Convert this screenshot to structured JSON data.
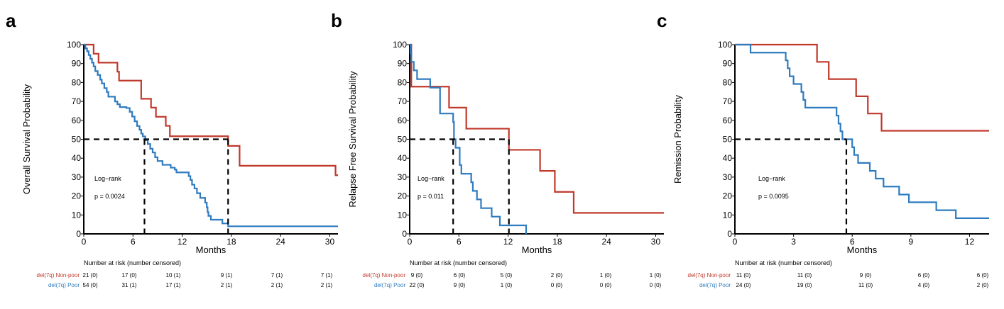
{
  "colors": {
    "non_poor": "#C0392B",
    "poor": "#2E7BBF",
    "median": "#000000"
  },
  "chart_data": [
    {
      "type": "line",
      "panel_label": "a",
      "ylabel": "Overall Survival Probability",
      "xlabel": "Months",
      "xlim": [
        0,
        31
      ],
      "ylim": [
        0,
        100
      ],
      "xticks": [
        0,
        6,
        12,
        18,
        24,
        30
      ],
      "yticks": [
        0,
        10,
        20,
        30,
        40,
        50,
        60,
        70,
        80,
        90,
        100
      ],
      "annotation": {
        "test": "Log−rank",
        "p": "p = 0.0024"
      },
      "median_lines": [
        7.4,
        17.6
      ],
      "series": [
        {
          "name": "del(7q) Non-poor",
          "key": "non_poor",
          "steps": [
            [
              0,
              100
            ],
            [
              1.2,
              95.2
            ],
            [
              1.8,
              90.5
            ],
            [
              4.1,
              85.7
            ],
            [
              4.3,
              81.0
            ],
            [
              7.0,
              71.4
            ],
            [
              8.2,
              66.7
            ],
            [
              8.8,
              61.9
            ],
            [
              10.0,
              57.1
            ],
            [
              10.5,
              51.6
            ],
            [
              17.6,
              46.5
            ],
            [
              19.0,
              36.0
            ],
            [
              30.7,
              31.0
            ],
            [
              31,
              31.0
            ]
          ]
        },
        {
          "name": "del(7q) Poor",
          "key": "poor",
          "steps": [
            [
              0,
              100
            ],
            [
              0.2,
              98
            ],
            [
              0.4,
              96.5
            ],
            [
              0.6,
              94.5
            ],
            [
              0.8,
              92.5
            ],
            [
              1.0,
              90.5
            ],
            [
              1.2,
              88.5
            ],
            [
              1.4,
              86
            ],
            [
              1.7,
              84
            ],
            [
              2.0,
              81.5
            ],
            [
              2.2,
              79.5
            ],
            [
              2.5,
              77
            ],
            [
              2.8,
              75
            ],
            [
              3.0,
              72.5
            ],
            [
              3.8,
              70
            ],
            [
              4.1,
              68.5
            ],
            [
              4.4,
              67
            ],
            [
              5.2,
              66.5
            ],
            [
              5.6,
              64.5
            ],
            [
              5.9,
              62
            ],
            [
              6.2,
              59.5
            ],
            [
              6.5,
              57
            ],
            [
              6.8,
              55
            ],
            [
              7.0,
              53
            ],
            [
              7.2,
              51.5
            ],
            [
              7.5,
              49.5
            ],
            [
              7.8,
              47.5
            ],
            [
              8.1,
              45
            ],
            [
              8.4,
              43
            ],
            [
              8.7,
              40.5
            ],
            [
              9.0,
              38.5
            ],
            [
              9.6,
              36.5
            ],
            [
              10.6,
              35
            ],
            [
              11.1,
              34
            ],
            [
              11.3,
              32.5
            ],
            [
              12.8,
              30.5
            ],
            [
              13.0,
              28.5
            ],
            [
              13.2,
              26
            ],
            [
              13.5,
              24
            ],
            [
              13.8,
              21.5
            ],
            [
              14.2,
              19
            ],
            [
              14.8,
              16.5
            ],
            [
              15.0,
              14
            ],
            [
              15.1,
              11.5
            ],
            [
              15.2,
              9.5
            ],
            [
              15.5,
              7.5
            ],
            [
              16.9,
              5.5
            ],
            [
              17.6,
              4.0
            ],
            [
              31,
              4.0
            ]
          ]
        }
      ],
      "risk_table": {
        "title": "Number at risk (number censored)",
        "rows": [
          {
            "label": "del(7q) Non-poor",
            "key": "non_poor",
            "values": [
              "21 (0)",
              "17 (0)",
              "10 (1)",
              "9 (1)",
              "7 (1)",
              "7 (1)"
            ]
          },
          {
            "label": "del(7q) Poor",
            "key": "poor",
            "values": [
              "54 (0)",
              "31 (1)",
              "17 (1)",
              "2 (1)",
              "2 (1)",
              "2 (1)"
            ]
          }
        ]
      }
    },
    {
      "type": "line",
      "panel_label": "b",
      "ylabel": "Relapse Free Survival Probability",
      "xlabel": "Months",
      "xlim": [
        0,
        31
      ],
      "ylim": [
        0,
        100
      ],
      "xticks": [
        0,
        6,
        12,
        18,
        24,
        30
      ],
      "yticks": [
        0,
        10,
        20,
        30,
        40,
        50,
        60,
        70,
        80,
        90,
        100
      ],
      "annotation": {
        "test": "Log−rank",
        "p": "p = 0.011"
      },
      "median_lines": [
        5.3,
        12.1
      ],
      "series": [
        {
          "name": "del(7q) Non-poor",
          "key": "non_poor",
          "steps": [
            [
              0,
              100
            ],
            [
              0.2,
              77.8
            ],
            [
              4.8,
              66.7
            ],
            [
              6.9,
              55.6
            ],
            [
              12.1,
              44.4
            ],
            [
              15.9,
              33.3
            ],
            [
              17.7,
              22.2
            ],
            [
              20.0,
              11.1
            ],
            [
              31,
              11.1
            ]
          ]
        },
        {
          "name": "del(7q) Poor",
          "key": "poor",
          "steps": [
            [
              0,
              100
            ],
            [
              0.1,
              95.5
            ],
            [
              0.2,
              90.9
            ],
            [
              0.5,
              86.4
            ],
            [
              0.9,
              81.8
            ],
            [
              2.5,
              77.3
            ],
            [
              3.7,
              63.6
            ],
            [
              5.3,
              59.1
            ],
            [
              5.4,
              50.0
            ],
            [
              5.6,
              45.5
            ],
            [
              6.1,
              36.4
            ],
            [
              6.3,
              31.8
            ],
            [
              7.5,
              27.3
            ],
            [
              7.7,
              22.7
            ],
            [
              8.2,
              18.2
            ],
            [
              8.7,
              13.6
            ],
            [
              10.0,
              9.1
            ],
            [
              11.0,
              4.5
            ],
            [
              14.2,
              0
            ]
          ]
        }
      ],
      "risk_table": {
        "title": "Number at risk (number censored)",
        "rows": [
          {
            "label": "del(7q) Non-poor",
            "key": "non_poor",
            "values": [
              "9 (0)",
              "6 (0)",
              "5 (0)",
              "2 (0)",
              "1 (0)",
              "1 (0)"
            ]
          },
          {
            "label": "del(7q) Poor",
            "key": "poor",
            "values": [
              "22 (0)",
              "9 (0)",
              "1 (0)",
              "0 (0)",
              "0 (0)",
              "0 (0)"
            ]
          }
        ]
      }
    },
    {
      "type": "line",
      "panel_label": "c",
      "ylabel": "Remission Probability",
      "xlabel": "Months",
      "xlim": [
        0,
        13
      ],
      "ylim": [
        0,
        100
      ],
      "xticks": [
        0,
        3,
        6,
        9,
        12
      ],
      "yticks": [
        0,
        10,
        20,
        30,
        40,
        50,
        60,
        70,
        80,
        90,
        100
      ],
      "annotation": {
        "test": "Log−rank",
        "p": "p = 0.0095"
      },
      "median_lines": [
        5.7
      ],
      "series": [
        {
          "name": "del(7q) Non-poor",
          "key": "non_poor",
          "steps": [
            [
              0,
              100
            ],
            [
              4.2,
              90.9
            ],
            [
              4.8,
              81.8
            ],
            [
              6.2,
              72.7
            ],
            [
              6.8,
              63.6
            ],
            [
              7.5,
              54.5
            ],
            [
              13,
              54.5
            ]
          ]
        },
        {
          "name": "del(7q) Poor",
          "key": "poor",
          "steps": [
            [
              0,
              100
            ],
            [
              0.8,
              95.8
            ],
            [
              2.6,
              91.7
            ],
            [
              2.7,
              87.5
            ],
            [
              2.8,
              83.3
            ],
            [
              3.0,
              79.2
            ],
            [
              3.4,
              75.0
            ],
            [
              3.5,
              70.8
            ],
            [
              3.6,
              66.7
            ],
            [
              5.2,
              62.5
            ],
            [
              5.3,
              58.3
            ],
            [
              5.4,
              54.2
            ],
            [
              5.5,
              50.0
            ],
            [
              6.0,
              45.8
            ],
            [
              6.1,
              41.7
            ],
            [
              6.3,
              37.5
            ],
            [
              6.9,
              33.3
            ],
            [
              7.2,
              29.2
            ],
            [
              7.6,
              25.0
            ],
            [
              8.4,
              20.8
            ],
            [
              8.9,
              16.7
            ],
            [
              10.3,
              12.5
            ],
            [
              11.3,
              8.3
            ],
            [
              13,
              8.3
            ]
          ]
        }
      ],
      "risk_table": {
        "title": "Number at risk (number censored)",
        "rows": [
          {
            "label": "del(7q) Non-poor",
            "key": "non_poor",
            "values": [
              "11 (0)",
              "11 (0)",
              "9 (0)",
              "6 (0)",
              "6 (0)"
            ]
          },
          {
            "label": "del(7q) Poor",
            "key": "poor",
            "values": [
              "24 (0)",
              "19 (0)",
              "11 (0)",
              "4 (0)",
              "2 (0)"
            ]
          }
        ]
      }
    }
  ]
}
